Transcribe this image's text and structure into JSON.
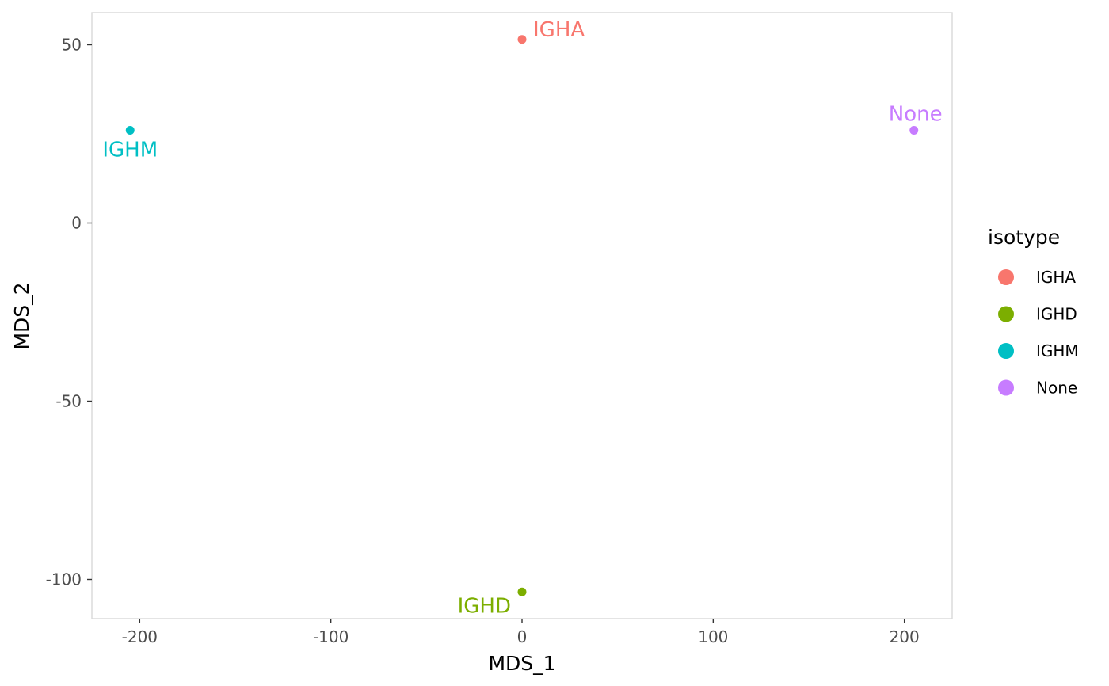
{
  "chart_data": {
    "type": "scatter",
    "xlabel": "MDS_1",
    "ylabel": "MDS_2",
    "xlim": [
      -225,
      225
    ],
    "ylim": [
      -111,
      59
    ],
    "x_ticks": [
      -200,
      -100,
      0,
      100,
      200
    ],
    "y_ticks": [
      -100,
      -50,
      0,
      50
    ],
    "x_tick_labels": [
      "-200",
      "-100",
      "0",
      "100",
      "200"
    ],
    "y_tick_labels": [
      "-100",
      "-50",
      "0",
      "50"
    ],
    "grid": false,
    "legend": {
      "title": "isotype",
      "position": "right",
      "entries": [
        {
          "label": "IGHA",
          "color": "#F8766D"
        },
        {
          "label": "IGHD",
          "color": "#7CAE00"
        },
        {
          "label": "IGHM",
          "color": "#00BFC4"
        },
        {
          "label": "None",
          "color": "#C77CFF"
        }
      ]
    },
    "points": [
      {
        "label": "IGHA",
        "x": 0,
        "y": 51.5,
        "color": "#F8766D",
        "label_pos": "upper-right"
      },
      {
        "label": "IGHM",
        "x": -205,
        "y": 26,
        "color": "#00BFC4",
        "label_pos": "below"
      },
      {
        "label": "None",
        "x": 205,
        "y": 26,
        "color": "#C77CFF",
        "label_pos": "above"
      },
      {
        "label": "IGHD",
        "x": 0,
        "y": -103.5,
        "color": "#7CAE00",
        "label_pos": "lower-left"
      }
    ]
  }
}
